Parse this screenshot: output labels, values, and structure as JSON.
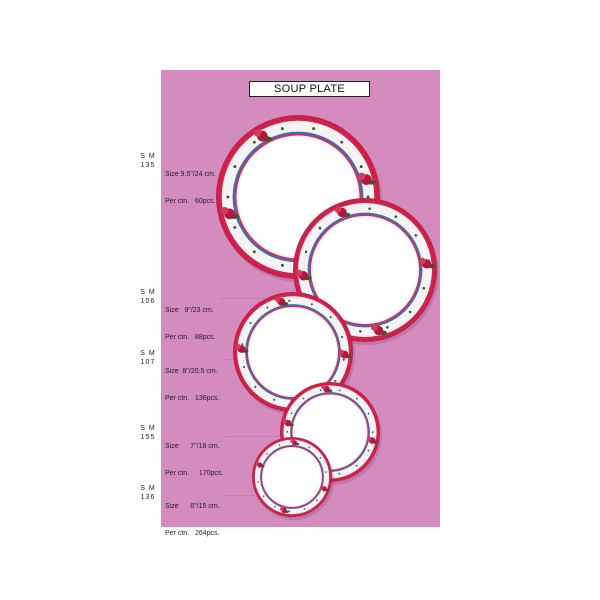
{
  "title": "SOUP PLATE",
  "colors": {
    "panel": "#d48bbd",
    "rim": "#e02a55",
    "border_band": "#f7f3f4",
    "center": "#ffffff",
    "accent_blue": "#3b6fb0",
    "flower": "#b3173c",
    "leaf": "#2f5e2d"
  },
  "items": [
    {
      "code_top": "S M",
      "code_bottom": "135",
      "size_line": "Size 9.5\"/24 cm.",
      "ctn_line": "Per ctn.   60pcs."
    },
    {
      "code_top": "S M",
      "code_bottom": "106",
      "size_line": "Size   9\"/23 cm.",
      "ctn_line": "Per ctn.   88pcs."
    },
    {
      "code_top": "S M",
      "code_bottom": "107",
      "size_line": "Size  8\"/20.5 cm.",
      "ctn_line": "Per ctn.   136pcs."
    },
    {
      "code_top": "S M",
      "code_bottom": "155",
      "size_line": "Size      7\"/18 cm.",
      "ctn_line": "Per ctn.     170pcs."
    },
    {
      "code_top": "S M",
      "code_bottom": "136",
      "size_line": "Size      6\"/15 cm.",
      "ctn_line": "Per ctn.   264pcs."
    }
  ]
}
